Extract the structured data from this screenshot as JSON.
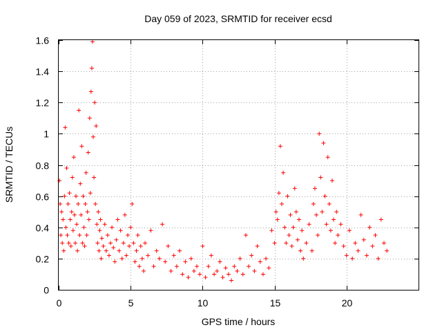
{
  "chart_data": {
    "type": "scatter",
    "title": "Day 059 of 2023, SRMTID for receiver ecsd",
    "xlabel": "GPS time / hours",
    "ylabel": "SRMTID / TECUs",
    "xlim": [
      0,
      25
    ],
    "ylim": [
      0,
      1.6
    ],
    "xticks": [
      0,
      5,
      10,
      15,
      20
    ],
    "xtick_labels": [
      "0",
      "5",
      "10",
      "15",
      "20"
    ],
    "yticks": [
      0,
      0.2,
      0.4,
      0.6,
      0.8,
      1,
      1.2,
      1.4,
      1.6
    ],
    "ytick_labels": [
      "0",
      "0.2",
      "0.4",
      "0.6",
      "0.8",
      "1",
      "1.2",
      "1.4",
      "1.6"
    ],
    "grid": true,
    "marker": "+",
    "series": [
      {
        "name": "SRMTID",
        "color": "#ff0000",
        "x": [
          0.05,
          0.1,
          0.15,
          0.2,
          0.25,
          0.3,
          0.35,
          0.4,
          0.45,
          0.5,
          0.55,
          0.6,
          0.65,
          0.7,
          0.75,
          0.8,
          0.85,
          0.9,
          0.95,
          1.0,
          1.05,
          1.1,
          1.15,
          1.2,
          1.25,
          1.3,
          1.35,
          1.4,
          1.45,
          1.5,
          1.55,
          1.6,
          1.65,
          1.7,
          1.75,
          1.8,
          1.85,
          1.9,
          1.95,
          2.0,
          2.05,
          2.1,
          2.15,
          2.2,
          2.25,
          2.3,
          2.35,
          2.4,
          2.45,
          2.5,
          2.55,
          2.6,
          2.65,
          2.7,
          2.75,
          2.8,
          2.85,
          2.9,
          2.95,
          3.0,
          3.1,
          3.2,
          3.3,
          3.4,
          3.5,
          3.6,
          3.7,
          3.8,
          3.9,
          4.0,
          4.1,
          4.2,
          4.3,
          4.4,
          4.5,
          4.6,
          4.7,
          4.8,
          4.9,
          5.0,
          5.1,
          5.2,
          5.3,
          5.4,
          5.5,
          5.6,
          5.7,
          5.8,
          5.9,
          6.0,
          6.2,
          6.4,
          6.6,
          6.8,
          7.0,
          7.2,
          7.4,
          7.6,
          7.8,
          8.0,
          8.2,
          8.4,
          8.6,
          8.8,
          9.0,
          9.2,
          9.4,
          9.6,
          9.8,
          10.0,
          10.2,
          10.4,
          10.6,
          10.8,
          11.0,
          11.2,
          11.4,
          11.6,
          11.8,
          12.0,
          12.2,
          12.4,
          12.6,
          12.8,
          13.0,
          13.2,
          13.4,
          13.6,
          13.8,
          14.0,
          14.2,
          14.4,
          14.6,
          14.8,
          15.0,
          15.1,
          15.2,
          15.3,
          15.4,
          15.5,
          15.6,
          15.7,
          15.8,
          15.9,
          16.0,
          16.1,
          16.2,
          16.3,
          16.4,
          16.5,
          16.6,
          16.7,
          16.8,
          16.9,
          17.0,
          17.2,
          17.4,
          17.6,
          17.7,
          17.8,
          17.9,
          18.0,
          18.1,
          18.2,
          18.3,
          18.4,
          18.5,
          18.6,
          18.7,
          18.8,
          18.9,
          19.0,
          19.1,
          19.2,
          19.3,
          19.4,
          19.6,
          19.8,
          20.0,
          20.2,
          20.4,
          20.6,
          20.8,
          21.0,
          21.2,
          21.4,
          21.6,
          21.8,
          22.0,
          22.2,
          22.4,
          22.6,
          22.8
        ],
        "y": [
          0.7,
          0.55,
          0.35,
          0.5,
          0.3,
          0.45,
          0.25,
          0.6,
          1.04,
          0.4,
          0.78,
          0.35,
          0.55,
          0.3,
          0.62,
          0.45,
          0.28,
          0.5,
          0.72,
          0.38,
          0.85,
          0.48,
          0.3,
          0.6,
          0.42,
          0.25,
          0.55,
          1.15,
          0.35,
          0.68,
          0.48,
          0.92,
          0.3,
          0.6,
          0.4,
          0.28,
          0.55,
          0.75,
          0.35,
          0.5,
          0.88,
          0.45,
          1.1,
          0.62,
          1.27,
          1.42,
          1.59,
          0.98,
          0.72,
          1.2,
          0.55,
          1.05,
          0.42,
          0.3,
          0.5,
          0.25,
          0.38,
          0.45,
          0.2,
          0.33,
          0.28,
          0.42,
          0.25,
          0.35,
          0.22,
          0.3,
          0.4,
          0.27,
          0.18,
          0.32,
          0.45,
          0.25,
          0.38,
          0.2,
          0.3,
          0.48,
          0.22,
          0.35,
          0.28,
          0.4,
          0.55,
          0.3,
          0.18,
          0.25,
          0.35,
          0.15,
          0.28,
          0.2,
          0.12,
          0.3,
          0.22,
          0.38,
          0.15,
          0.25,
          0.2,
          0.42,
          0.18,
          0.28,
          0.12,
          0.22,
          0.15,
          0.25,
          0.1,
          0.18,
          0.08,
          0.2,
          0.12,
          0.15,
          0.1,
          0.28,
          0.08,
          0.15,
          0.22,
          0.1,
          0.12,
          0.18,
          0.08,
          0.14,
          0.1,
          0.06,
          0.15,
          0.12,
          0.2,
          0.1,
          0.35,
          0.15,
          0.22,
          0.12,
          0.28,
          0.18,
          0.1,
          0.2,
          0.14,
          0.38,
          0.3,
          0.5,
          0.45,
          0.62,
          0.92,
          0.55,
          0.75,
          0.4,
          0.3,
          0.6,
          0.35,
          0.48,
          0.28,
          0.4,
          0.65,
          0.5,
          0.32,
          0.45,
          0.25,
          0.38,
          0.2,
          0.3,
          0.42,
          0.25,
          0.55,
          0.65,
          0.48,
          0.35,
          1.0,
          0.72,
          0.5,
          0.94,
          0.6,
          0.42,
          0.85,
          0.55,
          0.38,
          0.7,
          0.45,
          0.3,
          0.5,
          0.35,
          0.42,
          0.28,
          0.22,
          0.38,
          0.2,
          0.3,
          0.25,
          0.48,
          0.32,
          0.22,
          0.4,
          0.28,
          0.35,
          0.2,
          0.45,
          0.3,
          0.25
        ]
      }
    ]
  }
}
